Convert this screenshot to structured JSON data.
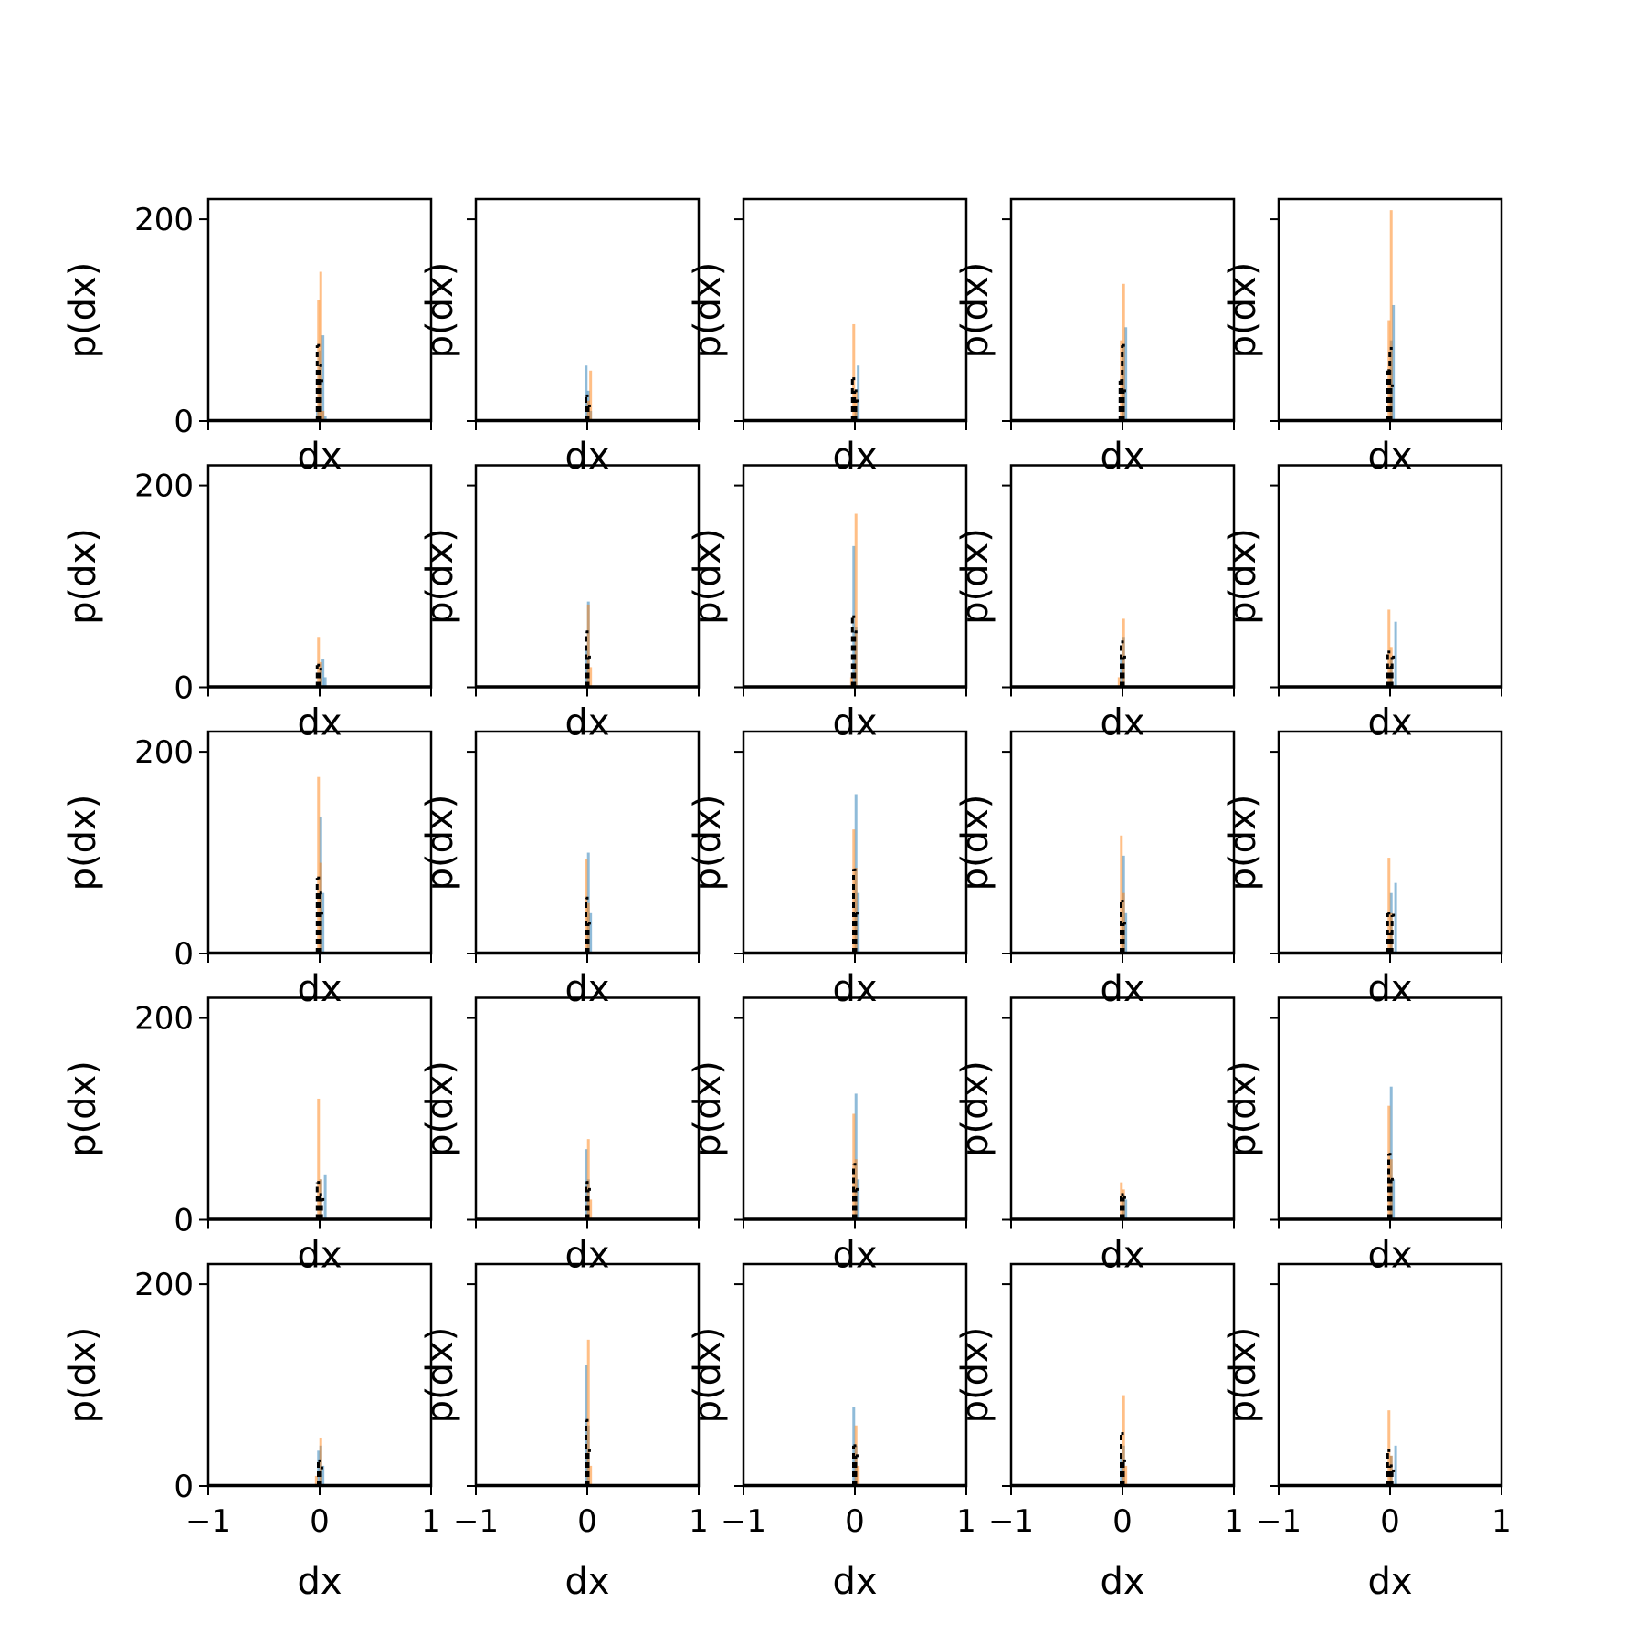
{
  "figure": {
    "rows": 5,
    "cols": 5,
    "shared_y_ticks": [
      "0",
      "200"
    ],
    "shared_x_ticks": [
      "−1",
      "0",
      "1"
    ]
  },
  "colors": {
    "series_blue": "#1f77b4",
    "series_orange": "#ff7f0e",
    "overlay": "#000000",
    "axes": "#000000",
    "background": "#ffffff"
  },
  "chart_data": {
    "type": "bar",
    "layout": "5x5 grid of histograms",
    "xlabel": "dx",
    "ylabel": "p(dx)",
    "xlim": [
      -1,
      1
    ],
    "ylim": [
      0,
      220
    ],
    "xticks": [
      -1,
      0,
      1
    ],
    "yticks": [
      0,
      200
    ],
    "grid": false,
    "legend": "none",
    "bar_width": 0.02,
    "series_order": [
      "blue",
      "orange",
      "black"
    ],
    "panels": [
      {
        "panel": [
          1,
          1
        ],
        "blue": [
          [
            -0.02,
            10
          ],
          [
            0,
            70
          ],
          [
            0.03,
            85
          ],
          [
            0.05,
            5
          ]
        ],
        "orange": [
          [
            -0.01,
            120
          ],
          [
            0.01,
            148
          ],
          [
            0.03,
            10
          ]
        ],
        "black": [
          [
            -0.01,
            75
          ],
          [
            0.01,
            55
          ],
          [
            0.02,
            40
          ]
        ]
      },
      {
        "panel": [
          1,
          2
        ],
        "blue": [
          [
            -0.01,
            55
          ],
          [
            0.01,
            30
          ],
          [
            0.03,
            10
          ]
        ],
        "orange": [
          [
            0.01,
            20
          ],
          [
            0.03,
            50
          ]
        ],
        "black": [
          [
            0,
            25
          ],
          [
            0.02,
            15
          ]
        ]
      },
      {
        "panel": [
          1,
          3
        ],
        "blue": [
          [
            0.01,
            15
          ],
          [
            0.03,
            55
          ]
        ],
        "orange": [
          [
            -0.01,
            96
          ],
          [
            0.01,
            30
          ]
        ],
        "black": [
          [
            -0.01,
            42
          ],
          [
            0.01,
            30
          ],
          [
            0.02,
            20
          ]
        ]
      },
      {
        "panel": [
          1,
          4
        ],
        "blue": [
          [
            0.01,
            75
          ],
          [
            0.03,
            93
          ]
        ],
        "orange": [
          [
            -0.01,
            80
          ],
          [
            0.01,
            136
          ]
        ],
        "black": [
          [
            -0.01,
            40
          ],
          [
            0.01,
            75
          ],
          [
            0.02,
            30
          ]
        ]
      },
      {
        "panel": [
          1,
          5
        ],
        "blue": [
          [
            0.01,
            80
          ],
          [
            0.03,
            115
          ]
        ],
        "orange": [
          [
            -0.01,
            100
          ],
          [
            0.01,
            209
          ]
        ],
        "black": [
          [
            -0.01,
            50
          ],
          [
            0.01,
            72
          ],
          [
            0.02,
            35
          ]
        ]
      },
      {
        "panel": [
          2,
          1
        ],
        "blue": [
          [
            0.01,
            20
          ],
          [
            0.03,
            28
          ],
          [
            0.05,
            10
          ]
        ],
        "orange": [
          [
            -0.01,
            50
          ],
          [
            0.01,
            25
          ]
        ],
        "black": [
          [
            -0.01,
            22
          ],
          [
            0.01,
            18
          ]
        ]
      },
      {
        "panel": [
          2,
          2
        ],
        "blue": [
          [
            -0.01,
            40
          ],
          [
            0.01,
            85
          ]
        ],
        "orange": [
          [
            0.01,
            82
          ],
          [
            0.03,
            20
          ]
        ],
        "black": [
          [
            0,
            55
          ],
          [
            0.02,
            30
          ]
        ]
      },
      {
        "panel": [
          2,
          3
        ],
        "blue": [
          [
            -0.01,
            140
          ],
          [
            0.01,
            60
          ]
        ],
        "orange": [
          [
            0.01,
            172
          ],
          [
            -0.03,
            10
          ]
        ],
        "black": [
          [
            -0.01,
            70
          ],
          [
            0.01,
            55
          ]
        ]
      },
      {
        "panel": [
          2,
          4
        ],
        "blue": [
          [
            -0.01,
            30
          ],
          [
            0.01,
            50
          ]
        ],
        "orange": [
          [
            0.01,
            68
          ],
          [
            -0.03,
            10
          ]
        ],
        "black": [
          [
            0,
            45
          ],
          [
            0.02,
            30
          ]
        ]
      },
      {
        "panel": [
          2,
          5
        ],
        "blue": [
          [
            0.01,
            30
          ],
          [
            0.05,
            65
          ]
        ],
        "orange": [
          [
            -0.01,
            77
          ],
          [
            0.01,
            40
          ]
        ],
        "black": [
          [
            -0.01,
            35
          ],
          [
            0.01,
            20
          ],
          [
            0.03,
            30
          ]
        ]
      },
      {
        "panel": [
          3,
          1
        ],
        "blue": [
          [
            0.01,
            135
          ],
          [
            0.03,
            60
          ]
        ],
        "orange": [
          [
            -0.01,
            175
          ],
          [
            0.01,
            90
          ]
        ],
        "black": [
          [
            -0.01,
            75
          ],
          [
            0.01,
            60
          ],
          [
            0.02,
            40
          ]
        ]
      },
      {
        "panel": [
          3,
          2
        ],
        "blue": [
          [
            0.01,
            100
          ],
          [
            0.03,
            40
          ]
        ],
        "orange": [
          [
            -0.01,
            94
          ],
          [
            0.01,
            50
          ]
        ],
        "black": [
          [
            0,
            55
          ],
          [
            0.02,
            30
          ]
        ]
      },
      {
        "panel": [
          3,
          3
        ],
        "blue": [
          [
            0.01,
            158
          ],
          [
            0.03,
            60
          ]
        ],
        "orange": [
          [
            -0.01,
            123
          ],
          [
            0.01,
            85
          ]
        ],
        "black": [
          [
            0,
            83
          ],
          [
            0.02,
            40
          ]
        ]
      },
      {
        "panel": [
          3,
          4
        ],
        "blue": [
          [
            0.01,
            97
          ],
          [
            0.03,
            40
          ]
        ],
        "orange": [
          [
            -0.01,
            117
          ],
          [
            0.01,
            60
          ]
        ],
        "black": [
          [
            0,
            52
          ],
          [
            0.02,
            30
          ]
        ]
      },
      {
        "panel": [
          3,
          5
        ],
        "blue": [
          [
            0.01,
            60
          ],
          [
            0.05,
            70
          ]
        ],
        "orange": [
          [
            -0.01,
            95
          ],
          [
            0.01,
            40
          ]
        ],
        "black": [
          [
            -0.01,
            40
          ],
          [
            0.01,
            20
          ],
          [
            0.03,
            38
          ]
        ]
      },
      {
        "panel": [
          4,
          1
        ],
        "blue": [
          [
            0.01,
            40
          ],
          [
            0.05,
            45
          ]
        ],
        "orange": [
          [
            -0.01,
            120
          ],
          [
            0.01,
            40
          ]
        ],
        "black": [
          [
            -0.01,
            37
          ],
          [
            0.01,
            25
          ],
          [
            0.03,
            20
          ]
        ]
      },
      {
        "panel": [
          4,
          2
        ],
        "blue": [
          [
            -0.01,
            70
          ],
          [
            0.01,
            40
          ]
        ],
        "orange": [
          [
            0.01,
            80
          ],
          [
            0.03,
            20
          ]
        ],
        "black": [
          [
            0,
            37
          ],
          [
            0.02,
            30
          ]
        ]
      },
      {
        "panel": [
          4,
          3
        ],
        "blue": [
          [
            0.01,
            125
          ],
          [
            0.03,
            40
          ]
        ],
        "orange": [
          [
            -0.01,
            105
          ],
          [
            0.01,
            60
          ]
        ],
        "black": [
          [
            0,
            55
          ],
          [
            0.02,
            30
          ]
        ]
      },
      {
        "panel": [
          4,
          4
        ],
        "blue": [
          [
            0.01,
            25
          ],
          [
            0.03,
            20
          ]
        ],
        "orange": [
          [
            -0.01,
            37
          ],
          [
            0.01,
            30
          ]
        ],
        "black": [
          [
            0,
            25
          ],
          [
            0.02,
            22
          ]
        ]
      },
      {
        "panel": [
          4,
          5
        ],
        "blue": [
          [
            0.01,
            132
          ],
          [
            0.03,
            40
          ]
        ],
        "orange": [
          [
            -0.01,
            113
          ],
          [
            0.01,
            60
          ]
        ],
        "black": [
          [
            0,
            65
          ],
          [
            0.02,
            40
          ]
        ]
      },
      {
        "panel": [
          5,
          1
        ],
        "blue": [
          [
            -0.01,
            35
          ],
          [
            0.01,
            40
          ],
          [
            0.03,
            20
          ]
        ],
        "orange": [
          [
            0.01,
            48
          ],
          [
            -0.03,
            10
          ]
        ],
        "black": [
          [
            0,
            25
          ],
          [
            0.02,
            18
          ]
        ]
      },
      {
        "panel": [
          5,
          2
        ],
        "blue": [
          [
            -0.01,
            120
          ],
          [
            0.01,
            60
          ]
        ],
        "orange": [
          [
            0.01,
            145
          ],
          [
            0.03,
            20
          ]
        ],
        "black": [
          [
            0,
            65
          ],
          [
            0.02,
            35
          ]
        ]
      },
      {
        "panel": [
          5,
          3
        ],
        "blue": [
          [
            -0.01,
            78
          ],
          [
            0.01,
            40
          ]
        ],
        "orange": [
          [
            0.01,
            60
          ],
          [
            0.03,
            20
          ]
        ],
        "black": [
          [
            0,
            40
          ],
          [
            0.02,
            30
          ]
        ]
      },
      {
        "panel": [
          5,
          4
        ],
        "blue": [
          [
            -0.01,
            30
          ],
          [
            0.01,
            40
          ]
        ],
        "orange": [
          [
            0.01,
            90
          ],
          [
            0.03,
            20
          ]
        ],
        "black": [
          [
            0,
            52
          ],
          [
            0.02,
            25
          ]
        ]
      },
      {
        "panel": [
          5,
          5
        ],
        "blue": [
          [
            0.01,
            30
          ],
          [
            0.05,
            40
          ]
        ],
        "orange": [
          [
            -0.01,
            75
          ],
          [
            0.01,
            30
          ]
        ],
        "black": [
          [
            -0.01,
            35
          ],
          [
            0.01,
            20
          ],
          [
            0.03,
            15
          ]
        ]
      }
    ]
  }
}
